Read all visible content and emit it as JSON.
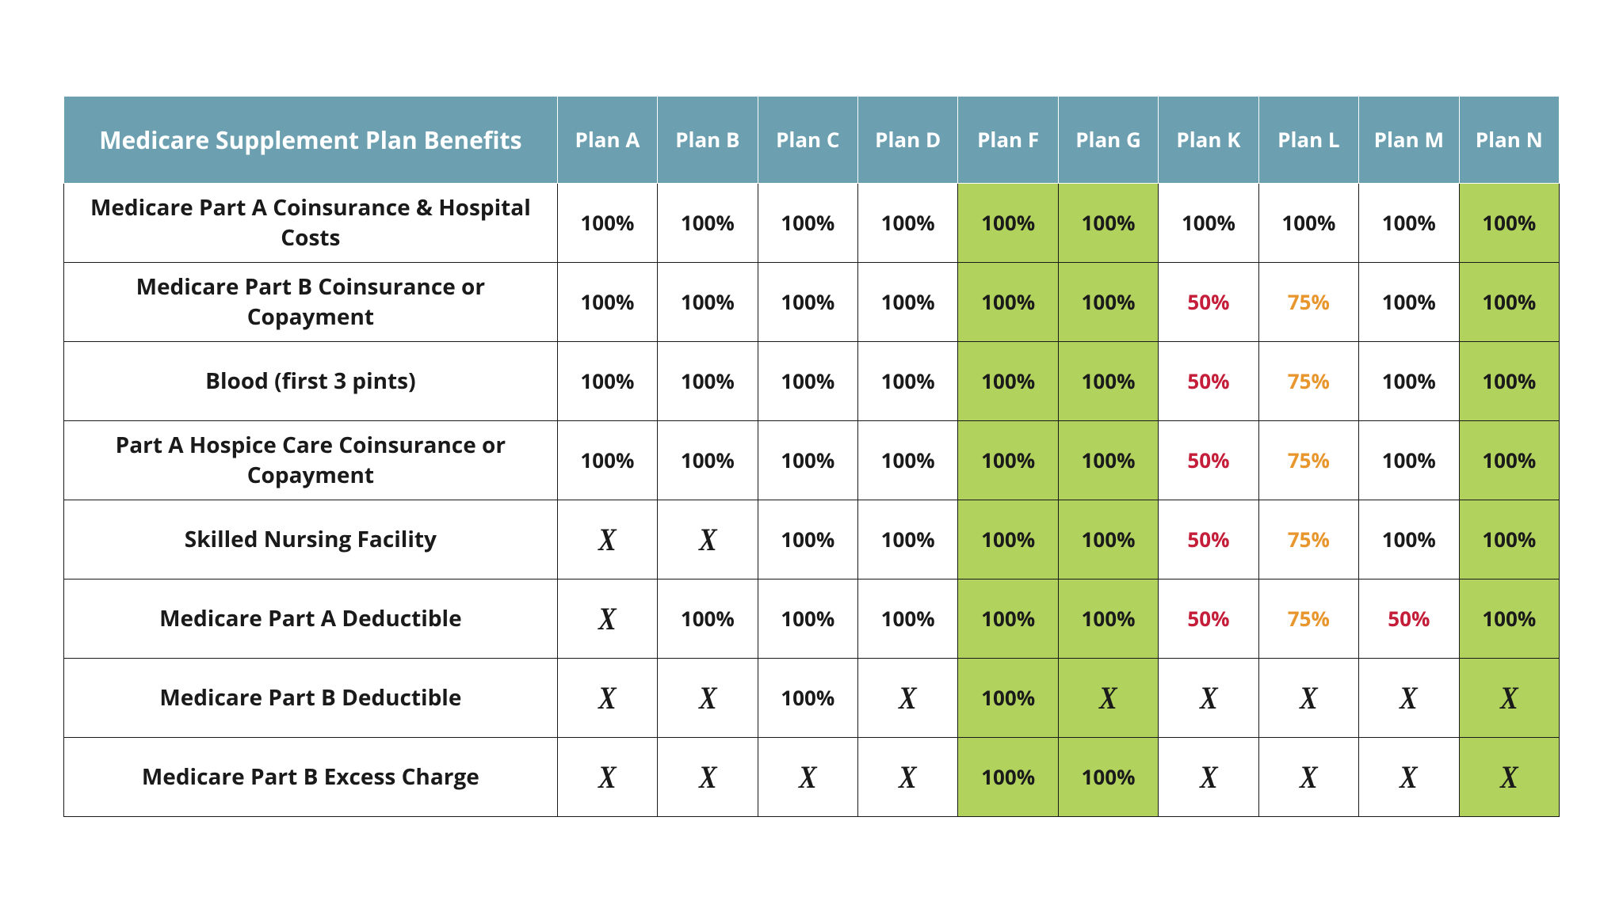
{
  "table": {
    "type": "table",
    "header_bg": "#6ca0b0",
    "header_text_color": "#ffffff",
    "highlight_bg": "#b2d25e",
    "cell_border_color": "#1a1a1a",
    "header_border_color": "#ffffff",
    "text_color": "#1a1a1a",
    "color_50": "#c41e3a",
    "color_75": "#e8962e",
    "x_mark": "X",
    "benefits_header": "Medicare Supplement Plan Benefits",
    "plan_headers": [
      "Plan A",
      "Plan B",
      "Plan C",
      "Plan D",
      "Plan F",
      "Plan G",
      "Plan K",
      "Plan L",
      "Plan M",
      "Plan N"
    ],
    "highlight_cols": [
      4,
      5,
      9
    ],
    "rows": [
      {
        "label": "Medicare Part A Coinsurance & Hospital Costs",
        "cells": [
          {
            "v": "100%"
          },
          {
            "v": "100%"
          },
          {
            "v": "100%"
          },
          {
            "v": "100%"
          },
          {
            "v": "100%"
          },
          {
            "v": "100%"
          },
          {
            "v": "100%"
          },
          {
            "v": "100%"
          },
          {
            "v": "100%"
          },
          {
            "v": "100%"
          }
        ]
      },
      {
        "label": "Medicare Part B Coinsurance or Copayment",
        "cells": [
          {
            "v": "100%"
          },
          {
            "v": "100%"
          },
          {
            "v": "100%"
          },
          {
            "v": "100%"
          },
          {
            "v": "100%"
          },
          {
            "v": "100%"
          },
          {
            "v": "50%",
            "c": "50"
          },
          {
            "v": "75%",
            "c": "75"
          },
          {
            "v": "100%"
          },
          {
            "v": "100%"
          }
        ]
      },
      {
        "label": "Blood (first 3 pints)",
        "cells": [
          {
            "v": "100%"
          },
          {
            "v": "100%"
          },
          {
            "v": "100%"
          },
          {
            "v": "100%"
          },
          {
            "v": "100%"
          },
          {
            "v": "100%"
          },
          {
            "v": "50%",
            "c": "50"
          },
          {
            "v": "75%",
            "c": "75"
          },
          {
            "v": "100%"
          },
          {
            "v": "100%"
          }
        ]
      },
      {
        "label": "Part A Hospice Care Coinsurance or Copayment",
        "cells": [
          {
            "v": "100%"
          },
          {
            "v": "100%"
          },
          {
            "v": "100%"
          },
          {
            "v": "100%"
          },
          {
            "v": "100%"
          },
          {
            "v": "100%"
          },
          {
            "v": "50%",
            "c": "50"
          },
          {
            "v": "75%",
            "c": "75"
          },
          {
            "v": "100%"
          },
          {
            "v": "100%"
          }
        ]
      },
      {
        "label": "Skilled Nursing Facility",
        "cells": [
          {
            "v": "X",
            "x": true
          },
          {
            "v": "X",
            "x": true
          },
          {
            "v": "100%"
          },
          {
            "v": "100%"
          },
          {
            "v": "100%"
          },
          {
            "v": "100%"
          },
          {
            "v": "50%",
            "c": "50"
          },
          {
            "v": "75%",
            "c": "75"
          },
          {
            "v": "100%"
          },
          {
            "v": "100%"
          }
        ]
      },
      {
        "label": "Medicare Part A Deductible",
        "cells": [
          {
            "v": "X",
            "x": true
          },
          {
            "v": "100%"
          },
          {
            "v": "100%"
          },
          {
            "v": "100%"
          },
          {
            "v": "100%"
          },
          {
            "v": "100%"
          },
          {
            "v": "50%",
            "c": "50"
          },
          {
            "v": "75%",
            "c": "75"
          },
          {
            "v": "50%",
            "c": "50"
          },
          {
            "v": "100%"
          }
        ]
      },
      {
        "label": "Medicare Part B Deductible",
        "cells": [
          {
            "v": "X",
            "x": true
          },
          {
            "v": "X",
            "x": true
          },
          {
            "v": "100%"
          },
          {
            "v": "X",
            "x": true
          },
          {
            "v": "100%"
          },
          {
            "v": "X",
            "x": true
          },
          {
            "v": "X",
            "x": true
          },
          {
            "v": "X",
            "x": true
          },
          {
            "v": "X",
            "x": true
          },
          {
            "v": "X",
            "x": true
          }
        ]
      },
      {
        "label": "Medicare Part B Excess Charge",
        "cells": [
          {
            "v": "X",
            "x": true
          },
          {
            "v": "X",
            "x": true
          },
          {
            "v": "X",
            "x": true
          },
          {
            "v": "X",
            "x": true
          },
          {
            "v": "100%"
          },
          {
            "v": "100%"
          },
          {
            "v": "X",
            "x": true
          },
          {
            "v": "X",
            "x": true
          },
          {
            "v": "X",
            "x": true
          },
          {
            "v": "X",
            "x": true
          }
        ]
      }
    ]
  }
}
